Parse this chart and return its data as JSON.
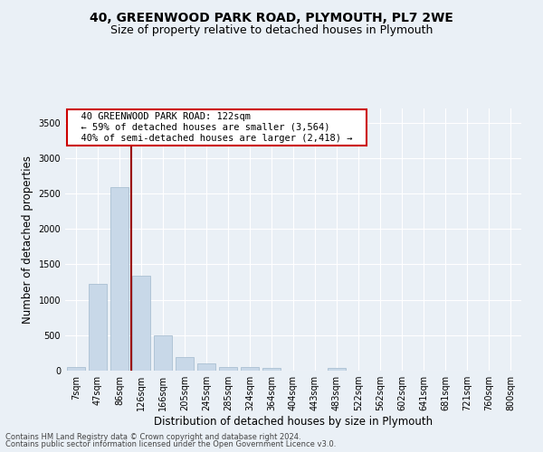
{
  "title1": "40, GREENWOOD PARK ROAD, PLYMOUTH, PL7 2WE",
  "title2": "Size of property relative to detached houses in Plymouth",
  "xlabel": "Distribution of detached houses by size in Plymouth",
  "ylabel": "Number of detached properties",
  "bar_color": "#c8d8e8",
  "bar_edge_color": "#a0b8cc",
  "categories": [
    "7sqm",
    "47sqm",
    "86sqm",
    "126sqm",
    "166sqm",
    "205sqm",
    "245sqm",
    "285sqm",
    "324sqm",
    "364sqm",
    "404sqm",
    "443sqm",
    "483sqm",
    "522sqm",
    "562sqm",
    "602sqm",
    "641sqm",
    "681sqm",
    "721sqm",
    "760sqm",
    "800sqm"
  ],
  "values": [
    55,
    1230,
    2590,
    1340,
    500,
    195,
    105,
    50,
    45,
    35,
    0,
    0,
    35,
    0,
    0,
    0,
    0,
    0,
    0,
    0,
    0
  ],
  "ylim": [
    0,
    3700
  ],
  "yticks": [
    0,
    500,
    1000,
    1500,
    2000,
    2500,
    3000,
    3500
  ],
  "property_line_x": 2.55,
  "property_line_color": "#990000",
  "annotation_text": "  40 GREENWOOD PARK ROAD: 122sqm  \n  ← 59% of detached houses are smaller (3,564)  \n  40% of semi-detached houses are larger (2,418) →  ",
  "annotation_box_color": "#ffffff",
  "annotation_edge_color": "#cc0000",
  "footer1": "Contains HM Land Registry data © Crown copyright and database right 2024.",
  "footer2": "Contains public sector information licensed under the Open Government Licence v3.0.",
  "background_color": "#eaf0f6",
  "grid_color": "#ffffff",
  "title1_fontsize": 10,
  "title2_fontsize": 9,
  "tick_fontsize": 7,
  "ylabel_fontsize": 8.5,
  "xlabel_fontsize": 8.5,
  "annotation_fontsize": 7.5,
  "footer_fontsize": 6
}
